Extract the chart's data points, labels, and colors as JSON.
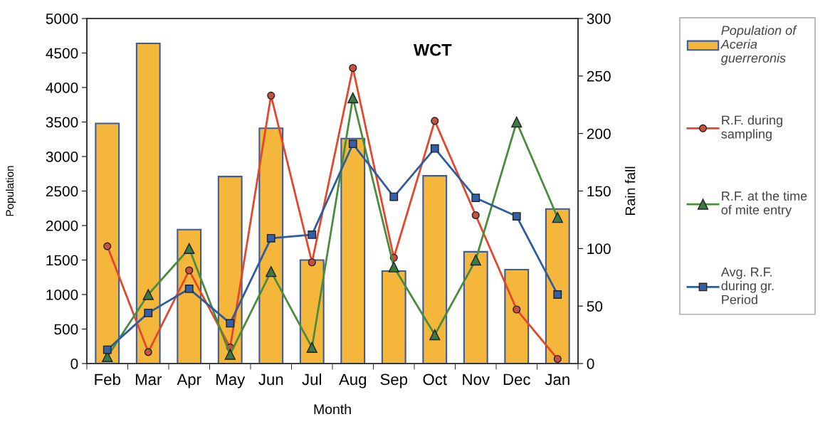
{
  "chart_data": {
    "type": "bar",
    "title": "WCT",
    "xlabel": "Month",
    "ylabel": "Population",
    "y2label": "Rain fall",
    "categories": [
      "Feb",
      "Mar",
      "Apr",
      "May",
      "Jun",
      "Jul",
      "Aug",
      "Sep",
      "Oct",
      "Nov",
      "Dec",
      "Jan"
    ],
    "series": [
      {
        "name": "Population of Aceria guerreronis",
        "color": "#f5b73b",
        "values": [
          3480,
          4640,
          1940,
          2710,
          3410,
          1500,
          3260,
          1340,
          2720,
          1620,
          1360,
          2240
        ]
      },
      {
        "name": "R.F. during sampling",
        "type": "line",
        "axis": "y2",
        "color": "#e5462a",
        "marker": "circle",
        "values": [
          102,
          10,
          81,
          14,
          233,
          88,
          257,
          92,
          211,
          129,
          47,
          4
        ]
      },
      {
        "name": "R.F. at the time of mite entry",
        "type": "line",
        "axis": "y2",
        "color": "#4a8c3c",
        "marker": "triangle",
        "values": [
          6,
          60,
          100,
          8,
          80,
          14,
          231,
          84,
          25,
          90,
          210,
          127
        ]
      },
      {
        "name": "Avg. R.F. during gr. Period",
        "type": "line",
        "axis": "y2",
        "color": "#2e5c9e",
        "marker": "square",
        "values": [
          12,
          44,
          65,
          35,
          109,
          112,
          191,
          145,
          187,
          144,
          128,
          60
        ]
      }
    ],
    "ylim": [
      0,
      5000
    ],
    "yticks": [
      0,
      500,
      1000,
      1500,
      2000,
      2500,
      3000,
      3500,
      4000,
      4500,
      5000
    ],
    "y2lim": [
      0,
      300
    ],
    "y2ticks": [
      0,
      50,
      100,
      150,
      200,
      250,
      300
    ],
    "grid": false,
    "legend": "right",
    "line_style": "solid"
  }
}
